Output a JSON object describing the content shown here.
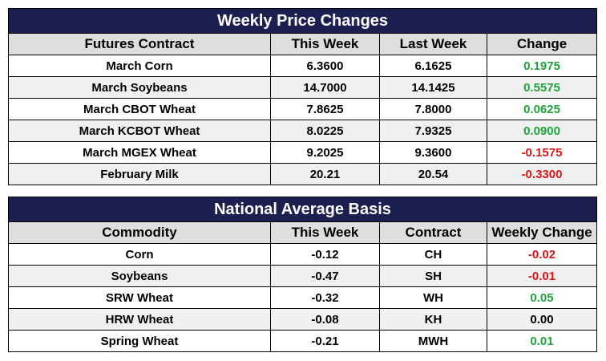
{
  "price_changes": {
    "title": "Weekly Price Changes",
    "headers": [
      "Futures Contract",
      "This Week",
      "Last Week",
      "Change"
    ],
    "rows": [
      {
        "contract": "March Corn",
        "this_week": "6.3600",
        "last_week": "6.1625",
        "change": "0.1975",
        "trend": "up"
      },
      {
        "contract": "March Soybeans",
        "this_week": "14.7000",
        "last_week": "14.1425",
        "change": "0.5575",
        "trend": "up"
      },
      {
        "contract": "March CBOT Wheat",
        "this_week": "7.8625",
        "last_week": "7.8000",
        "change": "0.0625",
        "trend": "up"
      },
      {
        "contract": "March KCBOT Wheat",
        "this_week": "8.0225",
        "last_week": "7.9325",
        "change": "0.0900",
        "trend": "up"
      },
      {
        "contract": "March MGEX Wheat",
        "this_week": "9.2025",
        "last_week": "9.3600",
        "change": "-0.1575",
        "trend": "down"
      },
      {
        "contract": "February Milk",
        "this_week": "20.21",
        "last_week": "20.54",
        "change": "-0.3300",
        "trend": "down"
      }
    ]
  },
  "basis": {
    "title": "National Average Basis",
    "headers": [
      "Commodity",
      "This Week",
      "Contract",
      "Weekly Change"
    ],
    "rows": [
      {
        "commodity": "Corn",
        "this_week": "-0.12",
        "contract": "CH",
        "change": "-0.02",
        "trend": "down"
      },
      {
        "commodity": "Soybeans",
        "this_week": "-0.47",
        "contract": "SH",
        "change": "-0.01",
        "trend": "down"
      },
      {
        "commodity": "SRW Wheat",
        "this_week": "-0.32",
        "contract": "WH",
        "change": "0.05",
        "trend": "up"
      },
      {
        "commodity": "HRW Wheat",
        "this_week": "-0.08",
        "contract": "KH",
        "change": "0.00",
        "trend": "flat"
      },
      {
        "commodity": "Spring Wheat",
        "this_week": "-0.21",
        "contract": "MWH",
        "change": "0.01",
        "trend": "up"
      }
    ]
  },
  "colors": {
    "title_bg": "#1b2050",
    "header_bg": "#dedede",
    "positive": "#1fa33a",
    "negative": "#e01515"
  }
}
